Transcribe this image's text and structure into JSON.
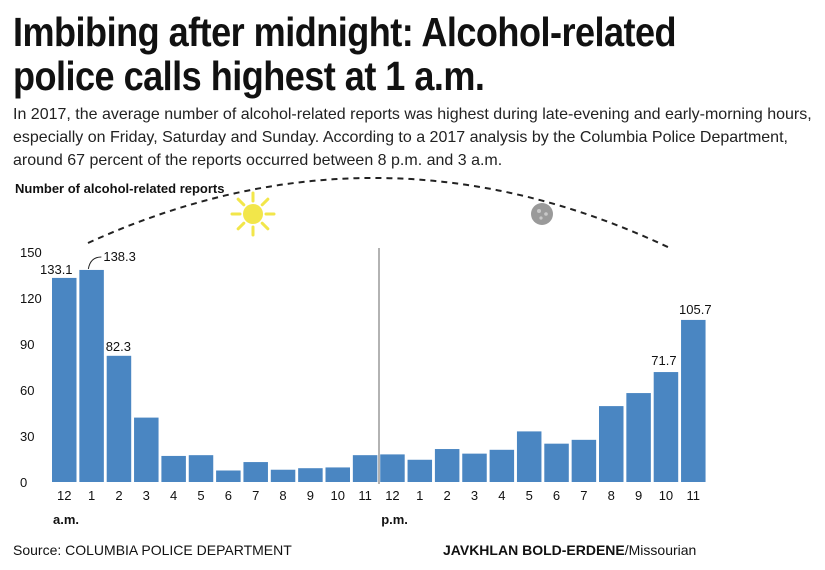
{
  "header": {
    "title": "Imbibing after midnight: Alcohol-related police calls highest at 1 a.m.",
    "intro": "In 2017, the average number of alcohol-related reports was highest during late-evening and early-morning hours, especially on Friday, Saturday and Sunday. According to a 2017 analysis by the Columbia Police Department, around 67 percent of the reports occurred between 8 p.m. and 3 a.m."
  },
  "footer": {
    "source": "Source: COLUMBIA POLICE DEPARTMENT",
    "credit_name": "JAVKHLAN BOLD-ERDENE",
    "credit_org": "/Missourian"
  },
  "colors": {
    "bar": "#4a86c2",
    "sun": "#f2e64a",
    "moon": "#9a9a9a",
    "divider": "#9a9a9a",
    "text": "#111111"
  },
  "icons": [
    "sun-icon",
    "moon-icon"
  ],
  "chart_data": {
    "type": "bar",
    "ylabel": "Number of alcohol-related reports",
    "ylim": [
      0,
      150
    ],
    "yticks": [
      0,
      30,
      60,
      90,
      120,
      150
    ],
    "categories": [
      "12",
      "1",
      "2",
      "3",
      "4",
      "5",
      "6",
      "7",
      "8",
      "9",
      "10",
      "11",
      "12",
      "1",
      "2",
      "3",
      "4",
      "5",
      "6",
      "7",
      "8",
      "9",
      "10",
      "11"
    ],
    "values": [
      133.1,
      138.3,
      82.3,
      42,
      17,
      17.5,
      7.5,
      13,
      8,
      9,
      9.5,
      17.5,
      18,
      14.5,
      21.5,
      18.5,
      21,
      33,
      25,
      27.5,
      49.5,
      58,
      71.7,
      105.7
    ],
    "data_labels": [
      {
        "index": 0,
        "text": "133.1"
      },
      {
        "index": 1,
        "text": "138.3"
      },
      {
        "index": 2,
        "text": "82.3"
      },
      {
        "index": 22,
        "text": "71.7"
      },
      {
        "index": 23,
        "text": "105.7"
      }
    ],
    "period_labels": [
      {
        "index": 0,
        "text": "a.m."
      },
      {
        "index": 12,
        "text": "p.m."
      }
    ],
    "grid": false
  }
}
